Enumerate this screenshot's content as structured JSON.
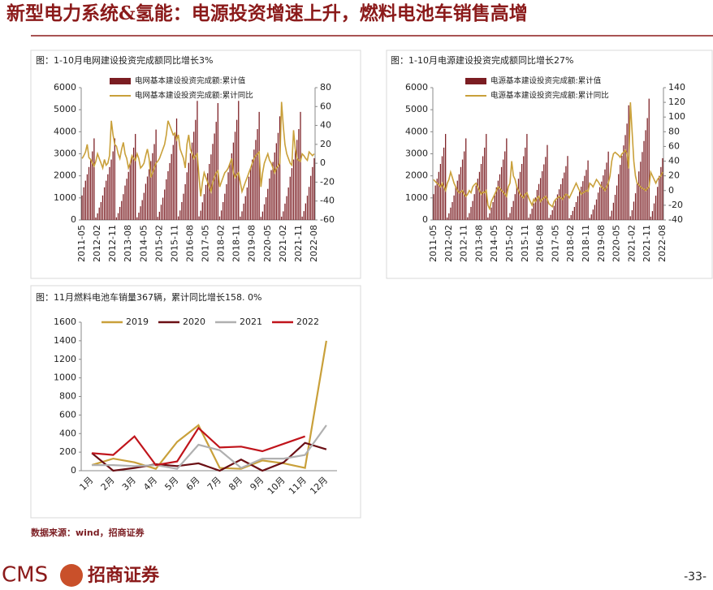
{
  "header": {
    "title": "新型电力系统&氢能：电源投资增速上升，燃料电池车销售高增"
  },
  "source": "数据来源：wind，招商证券",
  "footer": {
    "logo": "CMS",
    "company": "招商证券",
    "page": "-33-"
  },
  "chart_data": [
    {
      "type": "combo",
      "title": "图：1-10月电网建设投资完成额同比增长3%",
      "categories": [
        "2011-05",
        null,
        null,
        null,
        null,
        null,
        null,
        null,
        null,
        "2012-02",
        null,
        null,
        null,
        null,
        null,
        null,
        null,
        null,
        "2012-11",
        null,
        null,
        null,
        null,
        null,
        null,
        null,
        null,
        "2013-08",
        null,
        null,
        null,
        null,
        null,
        null,
        null,
        null,
        "2014-05",
        null,
        null,
        null,
        null,
        null,
        null,
        null,
        null,
        "2015-02",
        null,
        null,
        null,
        null,
        null,
        null,
        null,
        null,
        "2015-11",
        null,
        null,
        null,
        null,
        null,
        null,
        null,
        null,
        "2016-08",
        null,
        null,
        null,
        null,
        null,
        null,
        null,
        null,
        "2017-05",
        null,
        null,
        null,
        null,
        null,
        null,
        null,
        null,
        "2018-02",
        null,
        null,
        null,
        null,
        null,
        null,
        null,
        null,
        "2018-11",
        null,
        null,
        null,
        null,
        null,
        null,
        null,
        null,
        "2019-08",
        null,
        null,
        null,
        null,
        null,
        null,
        null,
        null,
        "2020-05",
        null,
        null,
        null,
        null,
        null,
        null,
        null,
        null,
        "2021-02",
        null,
        null,
        null,
        null,
        null,
        null,
        null,
        null,
        "2021-11",
        null,
        null,
        null,
        null,
        null,
        null,
        null,
        null,
        "2022-08"
      ],
      "series": [
        {
          "name": "电网基本建设投资完成额:累计值",
          "color": "#7b1d22",
          "values": [
            1110,
            1480,
            1780,
            2070,
            2400,
            2740,
            3110,
            3700,
            110,
            300,
            560,
            810,
            1110,
            1480,
            1780,
            2070,
            2400,
            2740,
            3110,
            3700,
            120,
            310,
            590,
            860,
            1170,
            1560,
            1870,
            2180,
            2540,
            2890,
            3280,
            3900,
            120,
            330,
            620,
            900,
            1230,
            1640,
            1970,
            2300,
            2670,
            3030,
            3440,
            4100,
            140,
            370,
            690,
            1010,
            1380,
            1840,
            2210,
            2580,
            2990,
            3400,
            3860,
            4600,
            160,
            430,
            810,
            1190,
            1620,
            2160,
            2590,
            3020,
            3510,
            4000,
            4540,
            5400,
            160,
            420,
            800,
            1170,
            1590,
            2120,
            2540,
            2970,
            3450,
            3920,
            4450,
            5300,
            160,
            430,
            810,
            1190,
            1620,
            2160,
            2590,
            3020,
            3510,
            4000,
            4540,
            5400,
            150,
            390,
            740,
            1080,
            1470,
            1960,
            2350,
            2740,
            3190,
            3630,
            4120,
            4900,
            140,
            380,
            710,
            1030,
            1410,
            1880,
            2260,
            2630,
            3060,
            3480,
            3950,
            4700,
            150,
            390,
            740,
            1080,
            1470,
            1960,
            2350,
            2740,
            3190,
            3630,
            4120,
            4900,
            150,
            400,
            750,
            1100,
            1500,
            2000,
            2400,
            2800
          ]
        },
        {
          "name": "电网基本建设投资完成额:累计同比",
          "color": "#c9a03a",
          "axis": "y2",
          "values": [
            5,
            8,
            12,
            20,
            6,
            4,
            0,
            -3,
            2,
            10,
            5,
            0,
            -5,
            4,
            -2,
            0,
            8,
            45,
            30,
            20,
            18,
            10,
            5,
            15,
            22,
            10,
            5,
            -5,
            0,
            8,
            5,
            3,
            10,
            5,
            -5,
            -3,
            0,
            8,
            15,
            5,
            -15,
            -10,
            -5,
            0,
            2,
            5,
            10,
            15,
            20,
            30,
            45,
            40,
            35,
            30,
            32,
            25,
            30,
            15,
            10,
            5,
            -5,
            20,
            30,
            15,
            10,
            5,
            8,
            10,
            -15,
            -35,
            -20,
            -10,
            -15,
            -20,
            -25,
            -30,
            -20,
            -15,
            -10,
            -8,
            -25,
            -20,
            -15,
            -10,
            -8,
            -5,
            0,
            5,
            -10,
            -15,
            -12,
            -10,
            -20,
            -30,
            -25,
            -20,
            -15,
            -10,
            -5,
            0,
            5,
            8,
            10,
            12,
            -25,
            -10,
            0,
            5,
            10,
            3,
            0,
            -5,
            -10,
            -5,
            -3,
            0,
            65,
            40,
            20,
            10,
            5,
            0,
            -2,
            35,
            15,
            5,
            3,
            2,
            10,
            8,
            5,
            3,
            12,
            10,
            8,
            10
          ]
        }
      ],
      "ylim": [
        0,
        6000
      ],
      "yticks": [
        0,
        1000,
        2000,
        3000,
        4000,
        5000,
        6000
      ],
      "y2lim": [
        -60,
        80
      ],
      "y2ticks": [
        -60,
        -40,
        -20,
        0,
        20,
        40,
        60,
        80
      ]
    },
    {
      "type": "combo",
      "title": "图：1-10月电源建设投资完成额同比增长27%",
      "categories": [
        "2011-05",
        null,
        null,
        null,
        null,
        null,
        null,
        null,
        null,
        "2012-02",
        null,
        null,
        null,
        null,
        null,
        null,
        null,
        null,
        "2012-11",
        null,
        null,
        null,
        null,
        null,
        null,
        null,
        null,
        "2013-08",
        null,
        null,
        null,
        null,
        null,
        null,
        null,
        null,
        "2014-05",
        null,
        null,
        null,
        null,
        null,
        null,
        null,
        null,
        "2015-02",
        null,
        null,
        null,
        null,
        null,
        null,
        null,
        null,
        "2015-11",
        null,
        null,
        null,
        null,
        null,
        null,
        null,
        null,
        "2016-08",
        null,
        null,
        null,
        null,
        null,
        null,
        null,
        null,
        "2017-05",
        null,
        null,
        null,
        null,
        null,
        null,
        null,
        null,
        "2018-02",
        null,
        null,
        null,
        null,
        null,
        null,
        null,
        null,
        "2018-11",
        null,
        null,
        null,
        null,
        null,
        null,
        null,
        null,
        "2019-08",
        null,
        null,
        null,
        null,
        null,
        null,
        null,
        null,
        "2020-05",
        null,
        null,
        null,
        null,
        null,
        null,
        null,
        null,
        "2021-02",
        null,
        null,
        null,
        null,
        null,
        null,
        null,
        null,
        "2021-11",
        null,
        null,
        null,
        null,
        null,
        null,
        null,
        null,
        "2022-08"
      ],
      "series": [
        {
          "name": "电源基本建设投资完成额:累计值",
          "color": "#7b1d22",
          "values": [
            1170,
            1560,
            1870,
            2180,
            2540,
            2890,
            3280,
            3900,
            110,
            300,
            560,
            810,
            1110,
            1480,
            1780,
            2070,
            2400,
            2740,
            3110,
            3700,
            120,
            310,
            590,
            860,
            1170,
            1560,
            1870,
            2180,
            2540,
            2890,
            3280,
            3900,
            110,
            300,
            560,
            810,
            1110,
            1480,
            1780,
            2070,
            2400,
            2740,
            3110,
            3700,
            120,
            310,
            590,
            860,
            1170,
            1560,
            1870,
            2180,
            2540,
            2890,
            3280,
            3900,
            100,
            270,
            510,
            750,
            1020,
            1360,
            1630,
            1900,
            2210,
            2520,
            2860,
            3400,
            90,
            230,
            440,
            640,
            870,
            1160,
            1390,
            1620,
            1890,
            2150,
            2440,
            2900,
            80,
            220,
            410,
            590,
            810,
            1080,
            1300,
            1510,
            1760,
            2000,
            2270,
            2700,
            90,
            250,
            470,
            680,
            930,
            1240,
            1490,
            1740,
            2020,
            2290,
            2600,
            3100,
            160,
            420,
            780,
            1140,
            1560,
            2080,
            2500,
            2910,
            3380,
            3850,
            4370,
            5200,
            170,
            440,
            830,
            1210,
            1650,
            2200,
            2640,
            3080,
            3580,
            4070,
            4620,
            5500,
            150,
            400,
            750,
            1100,
            1500,
            2000,
            2400,
            2800
          ]
        },
        {
          "name": "电源基本建设投资完成额:累计同比",
          "color": "#c9a03a",
          "axis": "y2",
          "values": [
            15,
            12,
            10,
            8,
            5,
            10,
            5,
            0,
            10,
            15,
            25,
            18,
            10,
            5,
            0,
            -3,
            -2,
            0,
            -5,
            -8,
            -5,
            0,
            -3,
            5,
            8,
            10,
            5,
            0,
            -5,
            -2,
            -3,
            0,
            -20,
            -25,
            -15,
            -10,
            -5,
            0,
            5,
            3,
            0,
            -2,
            -5,
            -8,
            5,
            10,
            40,
            20,
            15,
            5,
            0,
            -5,
            -8,
            -10,
            -5,
            -3,
            -10,
            -15,
            -20,
            -12,
            -15,
            -10,
            -8,
            -15,
            -12,
            -10,
            -8,
            -12,
            -18,
            -20,
            -22,
            -15,
            -12,
            -10,
            -8,
            -10,
            -12,
            -8,
            -5,
            -6,
            -10,
            -5,
            0,
            5,
            10,
            5,
            0,
            -5,
            -3,
            -2,
            0,
            -1,
            10,
            8,
            5,
            10,
            15,
            12,
            8,
            5,
            3,
            0,
            5,
            10,
            20,
            40,
            50,
            52,
            50,
            48,
            45,
            50,
            52,
            55,
            50,
            30,
            120,
            80,
            40,
            20,
            10,
            8,
            5,
            3,
            2,
            0,
            3,
            5,
            25,
            20,
            15,
            10,
            15,
            18,
            20,
            25
          ]
        }
      ],
      "ylim": [
        0,
        6000
      ],
      "yticks": [
        0,
        1000,
        2000,
        3000,
        4000,
        5000,
        6000
      ],
      "y2lim": [
        -40,
        140
      ],
      "y2ticks": [
        -40,
        -20,
        0,
        20,
        40,
        60,
        80,
        100,
        120,
        140
      ]
    },
    {
      "type": "line",
      "title": "图：11月燃料电池车销量367辆，累计同比增长158. 0%",
      "categories": [
        "1月",
        "2月",
        "3月",
        "4月",
        "5月",
        "6月",
        "7月",
        "8月",
        "9月",
        "10月",
        "11月",
        "12月"
      ],
      "series": [
        {
          "name": "2019",
          "color": "#c9a03a",
          "values": [
            60,
            130,
            90,
            20,
            310,
            490,
            30,
            20,
            110,
            80,
            30,
            1400
          ]
        },
        {
          "name": "2020",
          "color": "#6b0f14",
          "values": [
            190,
            0,
            30,
            70,
            50,
            80,
            0,
            120,
            0,
            90,
            300,
            230
          ]
        },
        {
          "name": "2021",
          "color": "#b0b0b0",
          "values": [
            60,
            60,
            50,
            60,
            20,
            280,
            220,
            30,
            130,
            130,
            170,
            490
          ]
        },
        {
          "name": "2022",
          "color": "#c0141b",
          "values": [
            190,
            170,
            370,
            60,
            100,
            460,
            250,
            260,
            210,
            290,
            370,
            null
          ]
        }
      ],
      "ylim": [
        0,
        1600
      ],
      "yticks": [
        0,
        200,
        400,
        600,
        800,
        1000,
        1200,
        1400,
        1600
      ]
    }
  ]
}
